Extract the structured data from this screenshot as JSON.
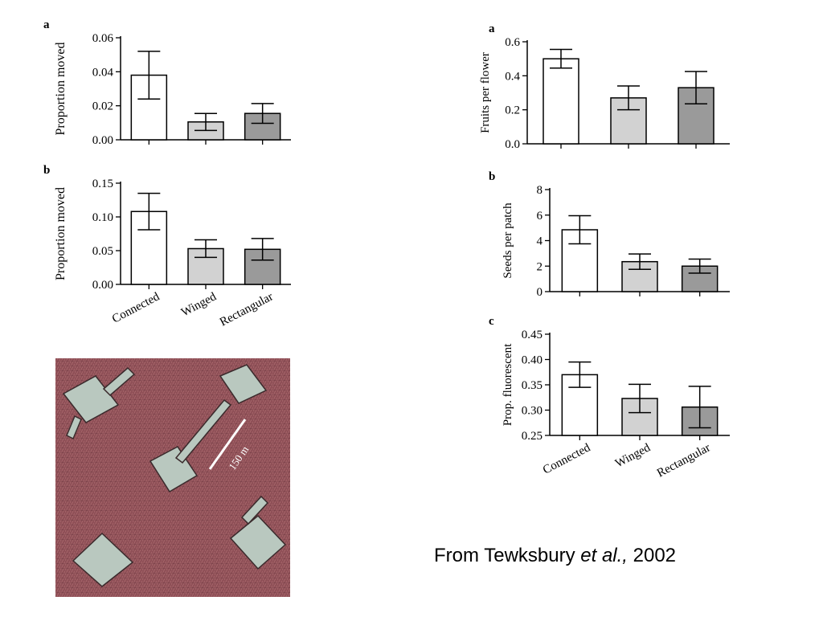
{
  "chart_data": [
    {
      "type": "bar",
      "panel": "a",
      "ylabel": "Proportion moved",
      "categories": [
        "Connected",
        "Winged",
        "Rectangular"
      ],
      "values": [
        0.038,
        0.0105,
        0.0155
      ],
      "errors": [
        0.014,
        0.005,
        0.0058
      ],
      "ylim": [
        0,
        0.06
      ],
      "yticks": [
        0,
        0.02,
        0.04,
        0.06
      ],
      "ytick_labels": [
        "0.00",
        "0.02",
        "0.04",
        "0.06"
      ],
      "show_xticklabels": false
    },
    {
      "type": "bar",
      "panel": "b",
      "ylabel": "Proportion moved",
      "categories": [
        "Connected",
        "Winged",
        "Rectangular"
      ],
      "values": [
        0.108,
        0.053,
        0.052
      ],
      "errors": [
        0.027,
        0.013,
        0.016
      ],
      "ylim": [
        0,
        0.15
      ],
      "yticks": [
        0,
        0.05,
        0.1,
        0.15
      ],
      "ytick_labels": [
        "0.00",
        "0.05",
        "0.10",
        "0.15"
      ],
      "show_xticklabels": true
    },
    {
      "type": "bar",
      "panel": "a",
      "ylabel": "Fruits per flower",
      "categories": [
        "Connected",
        "Winged",
        "Rectangular"
      ],
      "values": [
        0.5,
        0.27,
        0.33
      ],
      "errors": [
        0.055,
        0.07,
        0.095
      ],
      "ylim": [
        0,
        0.6
      ],
      "yticks": [
        0,
        0.2,
        0.4,
        0.6
      ],
      "ytick_labels": [
        "0.0",
        "0.2",
        "0.4",
        "0.6"
      ],
      "show_xticklabels": false
    },
    {
      "type": "bar",
      "panel": "b",
      "ylabel": "Seeds per patch",
      "categories": [
        "Connected",
        "Winged",
        "Rectangular"
      ],
      "values": [
        4.85,
        2.35,
        2.0
      ],
      "errors": [
        1.1,
        0.6,
        0.55
      ],
      "ylim": [
        0,
        8
      ],
      "yticks": [
        0,
        2,
        4,
        6,
        8
      ],
      "ytick_labels": [
        "0",
        "2",
        "4",
        "6",
        "8"
      ],
      "show_xticklabels": false
    },
    {
      "type": "bar",
      "panel": "c",
      "ylabel": "Prop. fluorescent",
      "categories": [
        "Connected",
        "Winged",
        "Rectangular"
      ],
      "values": [
        0.37,
        0.323,
        0.306
      ],
      "errors": [
        0.025,
        0.028,
        0.041
      ],
      "ylim": [
        0.25,
        0.45
      ],
      "yticks": [
        0.25,
        0.3,
        0.35,
        0.4,
        0.45
      ],
      "ytick_labels": [
        "0.25",
        "0.30",
        "0.35",
        "0.40",
        "0.45"
      ],
      "show_xticklabels": true
    }
  ],
  "bar_colors": [
    "#ffffff",
    "#d2d2d2",
    "#9a9a9a"
  ],
  "photo": {
    "scale_label": "150 m",
    "background": "#8f4f57",
    "patch_color": "#b9c8bf"
  },
  "caption": {
    "prefix": "From Tewksbury ",
    "italic": "et al.,",
    "suffix": " 2002"
  }
}
